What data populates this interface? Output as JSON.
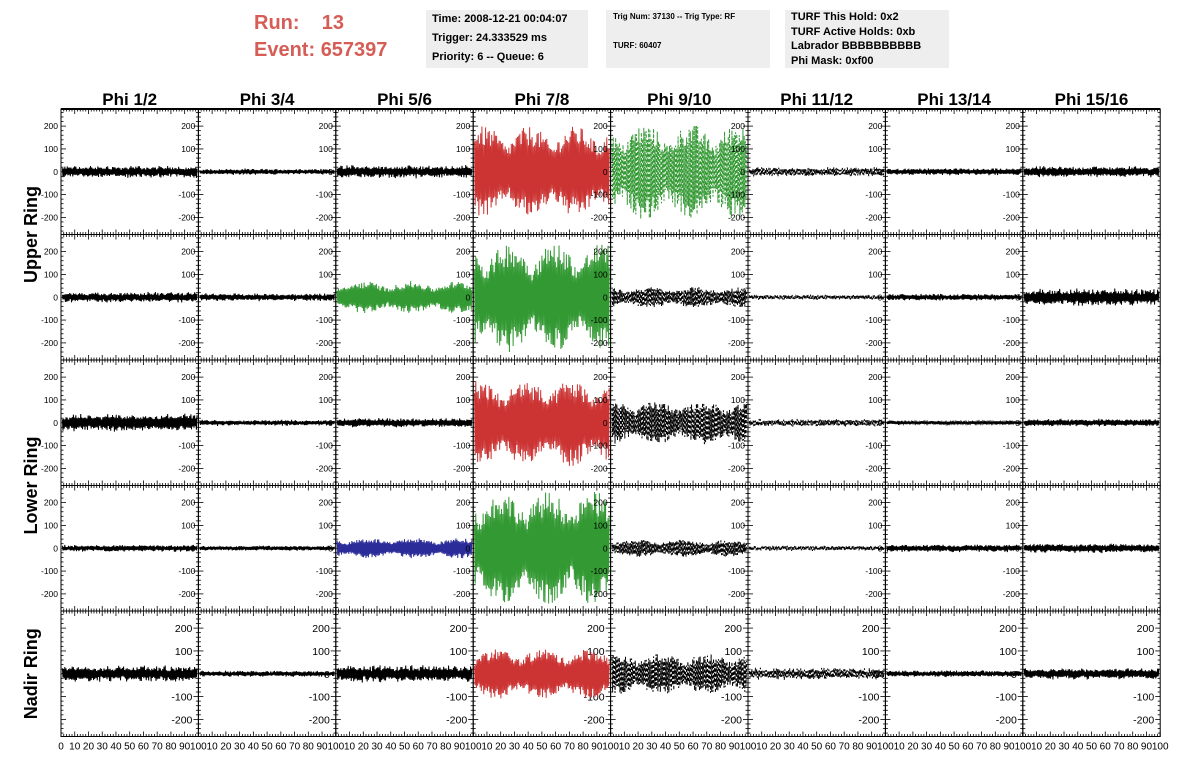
{
  "header": {
    "run_label": "Run:",
    "run_value": "13",
    "event_label": "Event:",
    "event_value": "657397",
    "time_line": "Time: 2008-12-21 00:04:07",
    "trigger_line": "Trigger: 24.333529 ms",
    "priority_line": "Priority: 6 -- Queue: 6",
    "trig_line": "Trig Num: 37130 -- Trig Type: RF",
    "turf_line": "TURF: 60407",
    "turf_hold": "TURF This Hold: 0x2",
    "turf_active": "TURF Active Holds: 0xb",
    "labrador": "Labrador BBBBBBBBBB",
    "phi_mask": "Phi Mask: 0xf00"
  },
  "colors": {
    "header_red": "#d65c56",
    "trace_black": "#000000",
    "trace_red": "#cc3333",
    "trace_green": "#339933",
    "trace_blue": "#2b2b99"
  },
  "chart_data": {
    "type": "line",
    "columns": [
      "Phi 1/2",
      "Phi 3/4",
      "Phi 5/6",
      "Phi 7/8",
      "Phi 9/10",
      "Phi 11/12",
      "Phi 13/14",
      "Phi 15/16"
    ],
    "rows": [
      "Upper Ring",
      "Upper Ring",
      "Lower Ring",
      "Lower Ring",
      "Nadir Ring"
    ],
    "ring_labels": [
      {
        "label": "Upper Ring",
        "rows": [
          0,
          1
        ]
      },
      {
        "label": "Lower Ring",
        "rows": [
          2,
          3
        ]
      },
      {
        "label": "Nadir Ring",
        "rows": [
          4
        ]
      }
    ],
    "xlim": [
      0,
      100
    ],
    "ylim": [
      -275,
      275
    ],
    "y_ticks": [
      -200,
      -100,
      0,
      100,
      200
    ],
    "x_tick_labels": [
      "0",
      "10",
      "20",
      "30",
      "40",
      "50",
      "60",
      "70",
      "80",
      "90",
      "100"
    ],
    "x_tick_labels_last": [
      "0",
      "10",
      "20",
      "30",
      "40",
      "50",
      "60",
      "70",
      "80",
      "90",
      "100"
    ],
    "grid": false,
    "panels": [
      {
        "row": 0,
        "col": 0,
        "amp": 28,
        "style": "solid",
        "color": "#000000",
        "env": "noise"
      },
      {
        "row": 0,
        "col": 1,
        "amp": 14,
        "style": "solid",
        "color": "#000000",
        "env": "noise"
      },
      {
        "row": 0,
        "col": 2,
        "amp": 30,
        "style": "solid",
        "color": "#000000",
        "env": "noise"
      },
      {
        "row": 0,
        "col": 3,
        "amp": 200,
        "style": "solid",
        "color": "#cc3333",
        "env": "signal"
      },
      {
        "row": 0,
        "col": 4,
        "amp": 210,
        "style": "dashed",
        "color": "#339933",
        "env": "signal"
      },
      {
        "row": 0,
        "col": 5,
        "amp": 22,
        "style": "dashed",
        "color": "#000000",
        "env": "noise"
      },
      {
        "row": 0,
        "col": 6,
        "amp": 16,
        "style": "solid",
        "color": "#000000",
        "env": "noise"
      },
      {
        "row": 0,
        "col": 7,
        "amp": 26,
        "style": "solid",
        "color": "#000000",
        "env": "noise"
      },
      {
        "row": 1,
        "col": 0,
        "amp": 24,
        "style": "solid",
        "color": "#000000",
        "env": "noise"
      },
      {
        "row": 1,
        "col": 1,
        "amp": 18,
        "style": "solid",
        "color": "#000000",
        "env": "noise"
      },
      {
        "row": 1,
        "col": 2,
        "amp": 70,
        "style": "solid",
        "color": "#339933",
        "env": "signal"
      },
      {
        "row": 1,
        "col": 3,
        "amp": 240,
        "style": "solid",
        "color": "#339933",
        "env": "signal"
      },
      {
        "row": 1,
        "col": 4,
        "amp": 45,
        "style": "dashed",
        "color": "#000000",
        "env": "signal"
      },
      {
        "row": 1,
        "col": 5,
        "amp": 12,
        "style": "dashed",
        "color": "#000000",
        "env": "noise"
      },
      {
        "row": 1,
        "col": 6,
        "amp": 16,
        "style": "solid",
        "color": "#000000",
        "env": "noise"
      },
      {
        "row": 1,
        "col": 7,
        "amp": 40,
        "style": "solid",
        "color": "#000000",
        "env": "noise"
      },
      {
        "row": 2,
        "col": 0,
        "amp": 42,
        "style": "solid",
        "color": "#000000",
        "env": "noise"
      },
      {
        "row": 2,
        "col": 1,
        "amp": 14,
        "style": "solid",
        "color": "#000000",
        "env": "noise"
      },
      {
        "row": 2,
        "col": 2,
        "amp": 22,
        "style": "solid",
        "color": "#000000",
        "env": "noise"
      },
      {
        "row": 2,
        "col": 3,
        "amp": 190,
        "style": "solid",
        "color": "#cc3333",
        "env": "signal"
      },
      {
        "row": 2,
        "col": 4,
        "amp": 95,
        "style": "dashed",
        "color": "#000000",
        "env": "signal"
      },
      {
        "row": 2,
        "col": 5,
        "amp": 18,
        "style": "dashed",
        "color": "#000000",
        "env": "noise"
      },
      {
        "row": 2,
        "col": 6,
        "amp": 10,
        "style": "solid",
        "color": "#000000",
        "env": "noise"
      },
      {
        "row": 2,
        "col": 7,
        "amp": 18,
        "style": "solid",
        "color": "#000000",
        "env": "noise"
      },
      {
        "row": 3,
        "col": 0,
        "amp": 16,
        "style": "solid",
        "color": "#000000",
        "env": "noise"
      },
      {
        "row": 3,
        "col": 1,
        "amp": 12,
        "style": "solid",
        "color": "#000000",
        "env": "noise"
      },
      {
        "row": 3,
        "col": 2,
        "amp": 45,
        "style": "solid",
        "color": "#2b2b99",
        "env": "signal"
      },
      {
        "row": 3,
        "col": 3,
        "amp": 250,
        "style": "solid",
        "color": "#339933",
        "env": "signal"
      },
      {
        "row": 3,
        "col": 4,
        "amp": 38,
        "style": "dashed",
        "color": "#000000",
        "env": "signal"
      },
      {
        "row": 3,
        "col": 5,
        "amp": 12,
        "style": "dashed",
        "color": "#000000",
        "env": "noise"
      },
      {
        "row": 3,
        "col": 6,
        "amp": 18,
        "style": "solid",
        "color": "#000000",
        "env": "noise"
      },
      {
        "row": 3,
        "col": 7,
        "amp": 22,
        "style": "solid",
        "color": "#000000",
        "env": "noise"
      },
      {
        "row": 4,
        "col": 0,
        "amp": 38,
        "style": "solid",
        "color": "#000000",
        "env": "noise"
      },
      {
        "row": 4,
        "col": 1,
        "amp": 14,
        "style": "solid",
        "color": "#000000",
        "env": "noise"
      },
      {
        "row": 4,
        "col": 2,
        "amp": 40,
        "style": "solid",
        "color": "#000000",
        "env": "noise"
      },
      {
        "row": 4,
        "col": 3,
        "amp": 110,
        "style": "solid",
        "color": "#cc3333",
        "env": "signal"
      },
      {
        "row": 4,
        "col": 4,
        "amp": 90,
        "style": "dashed",
        "color": "#000000",
        "env": "signal"
      },
      {
        "row": 4,
        "col": 5,
        "amp": 28,
        "style": "dashed",
        "color": "#000000",
        "env": "noise"
      },
      {
        "row": 4,
        "col": 6,
        "amp": 16,
        "style": "solid",
        "color": "#000000",
        "env": "noise"
      },
      {
        "row": 4,
        "col": 7,
        "amp": 26,
        "style": "solid",
        "color": "#000000",
        "env": "noise"
      }
    ]
  }
}
